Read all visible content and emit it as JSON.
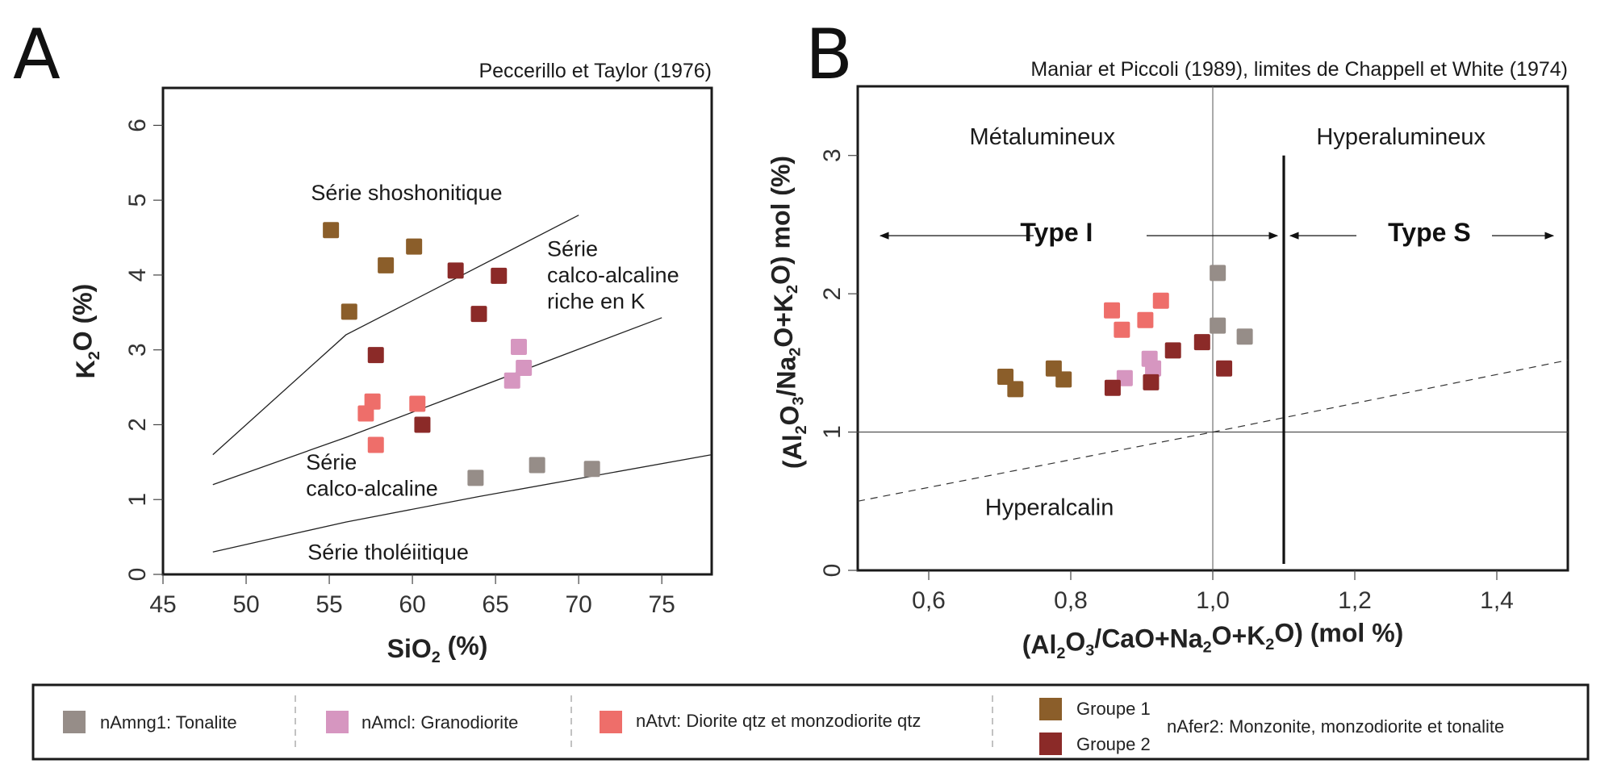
{
  "panels": {
    "a_letter": "A",
    "b_letter": "B"
  },
  "colors": {
    "nAmng1": "#968d88",
    "nAmcl": "#d696c0",
    "nAtvt": "#ee6e6a",
    "groupe1": "#8b5e2a",
    "groupe2": "#8b2a28"
  },
  "chart_data": [
    {
      "type": "scatter",
      "id": "A",
      "title": "Peccerillo et Taylor (1976)",
      "xlabel": "SiO2 (%)",
      "ylabel": "K2O (%)",
      "xlim": [
        45,
        78
      ],
      "ylim": [
        0,
        6.5
      ],
      "xticks": [
        45,
        50,
        55,
        60,
        65,
        70,
        75
      ],
      "yticks": [
        0,
        1,
        2,
        3,
        4,
        5,
        6
      ],
      "grid": false,
      "boundaries": [
        {
          "name": "shoshonitic-boundary",
          "points": [
            [
              48,
              1.6
            ],
            [
              56,
              3.2
            ],
            [
              70,
              4.8
            ]
          ]
        },
        {
          "name": "high-k-boundary",
          "points": [
            [
              48,
              1.2
            ],
            [
              56,
              1.83
            ],
            [
              75,
              3.43
            ]
          ]
        },
        {
          "name": "tholeiitic-boundary",
          "points": [
            [
              48,
              0.3
            ],
            [
              52,
              0.5
            ],
            [
              56,
              0.7
            ],
            [
              64,
              1.04
            ],
            [
              78,
              1.6
            ]
          ]
        }
      ],
      "annotations": [
        {
          "name": "serie-shoshonitique",
          "lines": [
            "Série shoshonitique"
          ],
          "x": 53.9,
          "y": 5.0
        },
        {
          "name": "serie-calco-alcaline-riche-k",
          "lines": [
            "Série",
            "calco-alcaline",
            "riche en K"
          ],
          "x": 68.1,
          "y": 4.25
        },
        {
          "name": "serie-calco-alcaline",
          "lines": [
            "Série",
            "calco-alcaline"
          ],
          "x": 53.6,
          "y": 1.4
        },
        {
          "name": "serie-tholeiitique",
          "lines": [
            "Série tholéiitique"
          ],
          "x": 53.7,
          "y": 0.2
        }
      ],
      "series": [
        {
          "name": "nAmng1: Tonalite",
          "color_key": "nAmng1",
          "points": [
            [
              63.8,
              1.29
            ],
            [
              67.5,
              1.46
            ],
            [
              70.8,
              1.41
            ]
          ]
        },
        {
          "name": "nAmcl: Granodiorite",
          "color_key": "nAmcl",
          "points": [
            [
              66.4,
              3.04
            ],
            [
              66.7,
              2.76
            ],
            [
              66.0,
              2.59
            ]
          ]
        },
        {
          "name": "nAtvt: Diorite qtz et monzodiorite qtz",
          "color_key": "nAtvt",
          "points": [
            [
              57.6,
              2.31
            ],
            [
              57.2,
              2.15
            ],
            [
              60.3,
              2.28
            ],
            [
              57.8,
              1.73
            ]
          ]
        },
        {
          "name": "Groupe 1",
          "color_key": "groupe1",
          "points": [
            [
              55.1,
              4.6
            ],
            [
              58.4,
              4.13
            ],
            [
              60.1,
              4.38
            ],
            [
              56.2,
              3.51
            ]
          ]
        },
        {
          "name": "Groupe 2",
          "color_key": "groupe2",
          "points": [
            [
              62.6,
              4.06
            ],
            [
              65.2,
              3.99
            ],
            [
              64.0,
              3.48
            ],
            [
              57.8,
              2.93
            ],
            [
              60.6,
              2.0
            ]
          ]
        }
      ]
    },
    {
      "type": "scatter",
      "id": "B",
      "title": "Maniar et Piccoli (1989), limites de Chappell et White (1974)",
      "xlabel": "(Al2O3/CaO+Na2O+K2O) (mol %)",
      "ylabel": "(Al2O3/Na2O+K2O) mol (%)",
      "xlim": [
        0.5,
        1.5
      ],
      "ylim": [
        0,
        3.5
      ],
      "xticks": [
        0.6,
        0.8,
        1.0,
        1.2,
        1.4
      ],
      "xtick_labels": [
        "0,6",
        "0,8",
        "1,0",
        "1,2",
        "1,4"
      ],
      "yticks": [
        0,
        1,
        2,
        3
      ],
      "grid": false,
      "reference_lines": {
        "x_a_cnk": 1.0,
        "y_a_nk": 1.0,
        "type_boundary_x": 1.1,
        "type_boundary_ymax": 3.0
      },
      "dashed_boundary": [
        [
          0.5,
          0.5
        ],
        [
          1.0,
          1.0
        ],
        [
          1.5,
          1.52
        ]
      ],
      "annotations": [
        {
          "name": "metalumineux",
          "text": "Métalumineux",
          "x": 0.76,
          "y": 3.08
        },
        {
          "name": "hyperalumineux",
          "text": "Hyperalumineux",
          "x": 1.265,
          "y": 3.08
        },
        {
          "name": "hyperalcalin",
          "text": "Hyperalcalin",
          "x": 0.77,
          "y": 0.4
        },
        {
          "name": "type-i",
          "text": "Type I",
          "x": 0.78,
          "y": 2.38,
          "bold": true
        },
        {
          "name": "type-s",
          "text": "Type S",
          "x": 1.305,
          "y": 2.38,
          "bold": true
        }
      ],
      "series": [
        {
          "name": "nAmng1: Tonalite",
          "color_key": "nAmng1",
          "points": [
            [
              1.007,
              2.15
            ],
            [
              1.007,
              1.77
            ],
            [
              1.045,
              1.69
            ]
          ]
        },
        {
          "name": "nAmcl: Granodiorite",
          "color_key": "nAmcl",
          "points": [
            [
              0.876,
              1.39
            ],
            [
              0.911,
              1.53
            ],
            [
              0.916,
              1.46
            ]
          ]
        },
        {
          "name": "nAtvt: Diorite qtz et monzodiorite qtz",
          "color_key": "nAtvt",
          "points": [
            [
              0.858,
              1.88
            ],
            [
              0.872,
              1.74
            ],
            [
              0.905,
              1.81
            ],
            [
              0.927,
              1.95
            ]
          ]
        },
        {
          "name": "Groupe 1",
          "color_key": "groupe1",
          "points": [
            [
              0.708,
              1.4
            ],
            [
              0.722,
              1.31
            ],
            [
              0.776,
              1.46
            ],
            [
              0.79,
              1.38
            ]
          ]
        },
        {
          "name": "Groupe 2",
          "color_key": "groupe2",
          "points": [
            [
              0.859,
              1.32
            ],
            [
              0.913,
              1.36
            ],
            [
              0.944,
              1.59
            ],
            [
              0.985,
              1.65
            ],
            [
              1.016,
              1.46
            ]
          ]
        }
      ]
    }
  ],
  "legend": {
    "items": [
      {
        "label": "nAmng1: Tonalite",
        "color_key": "nAmng1"
      },
      {
        "label": "nAmcl: Granodiorite",
        "color_key": "nAmcl"
      },
      {
        "label": "nAtvt: Diorite qtz et monzodiorite qtz",
        "color_key": "nAtvt"
      }
    ],
    "group": {
      "label": "nAfer2: Monzonite, monzodiorite et tonalite",
      "sub": [
        {
          "label": "Groupe 1",
          "color_key": "groupe1"
        },
        {
          "label": "Groupe 2",
          "color_key": "groupe2"
        }
      ]
    }
  }
}
